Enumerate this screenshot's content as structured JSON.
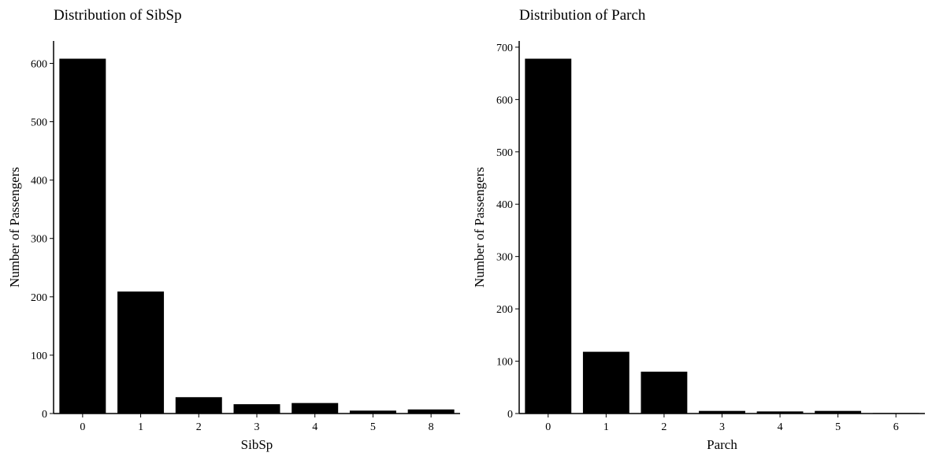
{
  "chart_data": [
    {
      "type": "bar",
      "title": "Distribution of SibSp",
      "xlabel": "SibSp",
      "ylabel": "Number of Passengers",
      "categories": [
        "0",
        "1",
        "2",
        "3",
        "4",
        "5",
        "8"
      ],
      "values": [
        608,
        209,
        28,
        16,
        18,
        5,
        7
      ],
      "ylim": [
        0,
        638.4
      ],
      "yticks": [
        0,
        100,
        200,
        300,
        400,
        500,
        600
      ],
      "bar_color": "#000000",
      "grid": false
    },
    {
      "type": "bar",
      "title": "Distribution of Parch",
      "xlabel": "Parch",
      "ylabel": "Number of Passengers",
      "categories": [
        "0",
        "1",
        "2",
        "3",
        "4",
        "5",
        "6"
      ],
      "values": [
        678,
        118,
        80,
        5,
        4,
        5,
        1
      ],
      "ylim": [
        0,
        711.9
      ],
      "yticks": [
        0,
        100,
        200,
        300,
        400,
        500,
        600,
        700
      ],
      "bar_color": "#000000",
      "grid": false
    }
  ]
}
